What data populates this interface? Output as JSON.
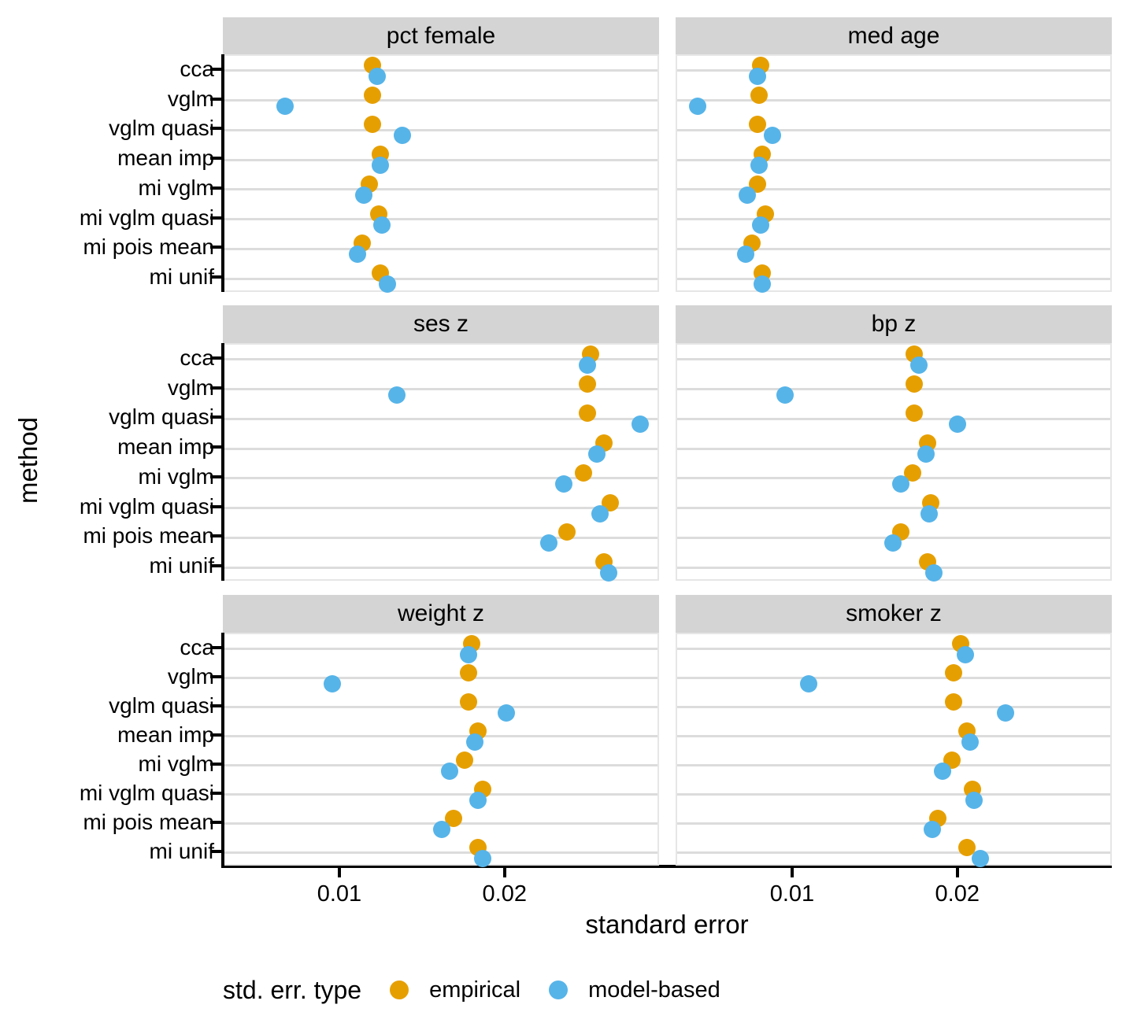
{
  "chart_data": {
    "type": "scatter",
    "title": "",
    "xlabel": "standard error",
    "ylabel": "method",
    "legend_title": "std. err. type",
    "legend_position": "bottom",
    "grid": "horizontal-major-only",
    "series_names": [
      "empirical",
      "model-based"
    ],
    "series_colors": {
      "empirical": "#E69F00",
      "model_based": "#56B4E9"
    },
    "categories": [
      "cca",
      "vglm",
      "vglm quasi",
      "mean imp",
      "mi vglm",
      "mi vglm quasi",
      "mi pois mean",
      "mi unif"
    ],
    "xlim": [
      0.00295,
      0.02935
    ],
    "x_tick_values": [
      0.01,
      0.02
    ],
    "x_tick_labels": [
      "0.01",
      "0.02"
    ],
    "facet_layout": {
      "rows": 3,
      "cols": 2
    },
    "facets": [
      {
        "title": "pct female",
        "empirical": [
          0.0119,
          0.0119,
          0.0119,
          0.0124,
          0.0117,
          0.0123,
          0.0113,
          0.0124
        ],
        "model_based": [
          0.0122,
          0.0066,
          0.0137,
          0.0124,
          0.0114,
          0.0125,
          0.011,
          0.0128
        ]
      },
      {
        "title": "med age",
        "empirical": [
          0.008,
          0.0079,
          0.0078,
          0.0081,
          0.0078,
          0.0083,
          0.0075,
          0.0081
        ],
        "model_based": [
          0.0078,
          0.0042,
          0.0087,
          0.0079,
          0.0072,
          0.008,
          0.0071,
          0.0081
        ]
      },
      {
        "title": "ses z",
        "empirical": [
          0.0251,
          0.0249,
          0.0249,
          0.0259,
          0.0247,
          0.0263,
          0.0237,
          0.0259
        ],
        "model_based": [
          0.0249,
          0.0134,
          0.0281,
          0.0255,
          0.0235,
          0.0257,
          0.0226,
          0.0262
        ]
      },
      {
        "title": "bp z",
        "empirical": [
          0.0173,
          0.0173,
          0.0173,
          0.0181,
          0.0172,
          0.0183,
          0.0165,
          0.0181
        ],
        "model_based": [
          0.0176,
          0.0095,
          0.0199,
          0.018,
          0.0165,
          0.0182,
          0.016,
          0.0185
        ]
      },
      {
        "title": "weight z",
        "empirical": [
          0.0179,
          0.0177,
          0.0177,
          0.0183,
          0.0175,
          0.0186,
          0.0168,
          0.0183
        ],
        "model_based": [
          0.0177,
          0.0095,
          0.02,
          0.0181,
          0.0166,
          0.0183,
          0.0161,
          0.0186
        ]
      },
      {
        "title": "smoker z",
        "empirical": [
          0.0201,
          0.0197,
          0.0197,
          0.0205,
          0.0196,
          0.0208,
          0.0187,
          0.0205
        ],
        "model_based": [
          0.0204,
          0.0109,
          0.0228,
          0.0207,
          0.019,
          0.0209,
          0.0184,
          0.0213
        ]
      }
    ]
  }
}
